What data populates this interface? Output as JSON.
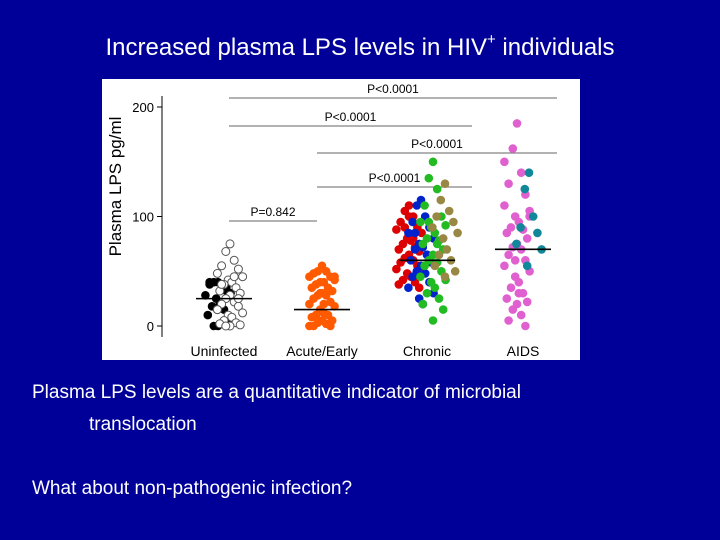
{
  "slide": {
    "title_main": "Increased plasma LPS levels in HIV",
    "title_sup": "+",
    "title_end": " individuals",
    "bullet_1": "Plasma LPS levels are a quantitative indicator of microbial",
    "bullet_1_cont": "translocation",
    "bullet_2": "What about non-pathogenic infection?",
    "background_color": "#000099"
  },
  "chart_data": {
    "type": "scatter",
    "ylabel": "Plasma LPS  pg/ml",
    "yticks": [
      0,
      100,
      200
    ],
    "ylim": [
      -10,
      210
    ],
    "categories": [
      "Uninfected",
      "Acute/Early",
      "Chronic",
      "AIDS"
    ],
    "medians": [
      25,
      15,
      60,
      70
    ],
    "comparisons": [
      {
        "label": "P<0.0001",
        "from": "Uninfected",
        "to": "AIDS"
      },
      {
        "label": "P<0.0001",
        "from": "Uninfected",
        "to": "Chronic"
      },
      {
        "label": "P<0.0001",
        "from": "Acute/Early",
        "to": "AIDS"
      },
      {
        "label": "P<0.0001",
        "from": "Acute/Early",
        "to": "Chronic"
      },
      {
        "label": "P=0.842",
        "from": "Uninfected",
        "to": "Acute/Early"
      }
    ],
    "series": [
      {
        "group": "Uninfected",
        "color": "#000000",
        "filled": true,
        "values": [
          40,
          40,
          35,
          38,
          32,
          28,
          30,
          25,
          20,
          18,
          15,
          10,
          5,
          0,
          0,
          2,
          40,
          35
        ]
      },
      {
        "group": "Uninfected",
        "color": "#555555",
        "filled": false,
        "values": [
          75,
          68,
          60,
          55,
          52,
          48,
          45,
          42,
          40,
          38,
          35,
          32,
          30,
          28,
          25,
          22,
          20,
          18,
          15,
          12,
          10,
          8,
          5,
          3,
          2,
          1,
          0,
          0,
          45,
          38,
          25,
          15
        ]
      },
      {
        "group": "Acute/Early",
        "color": "#ff5a00",
        "filled": true,
        "values": [
          55,
          50,
          50,
          48,
          45,
          45,
          42,
          40,
          40,
          38,
          35,
          35,
          32,
          30,
          28,
          28,
          25,
          22,
          20,
          18,
          15,
          12,
          10,
          10,
          8,
          5,
          5,
          3,
          2,
          0,
          0,
          0,
          45,
          30,
          20,
          10
        ]
      },
      {
        "group": "Chronic",
        "color": "#dd0000",
        "filled": true,
        "values": [
          110,
          105,
          100,
          95,
          90,
          88,
          85,
          80,
          78,
          75,
          72,
          70,
          68,
          65,
          62,
          60,
          58,
          55,
          52,
          50,
          48,
          45,
          42,
          40,
          38,
          35,
          100,
          90,
          80
        ]
      },
      {
        "group": "Chronic",
        "color": "#0022cc",
        "filled": true,
        "values": [
          115,
          110,
          100,
          95,
          90,
          85,
          80,
          75,
          72,
          70,
          65,
          60,
          58,
          55,
          50,
          48,
          45,
          40,
          35,
          30,
          25,
          20,
          85,
          65
        ]
      },
      {
        "group": "Chronic",
        "color": "#22bb22",
        "filled": true,
        "values": [
          150,
          135,
          125,
          110,
          100,
          95,
          92,
          90,
          85,
          80,
          78,
          75,
          70,
          65,
          60,
          58,
          55,
          50,
          45,
          42,
          40,
          35,
          30,
          25,
          20,
          15,
          5,
          95,
          75,
          55
        ]
      },
      {
        "group": "Chronic",
        "color": "#998844",
        "filled": true,
        "values": [
          130,
          115,
          105,
          100,
          95,
          90,
          85,
          80,
          70,
          65,
          60,
          55,
          50,
          45
        ]
      },
      {
        "group": "AIDS",
        "color": "#e060d0",
        "filled": true,
        "values": [
          185,
          162,
          140,
          130,
          120,
          110,
          105,
          100,
          95,
          90,
          88,
          85,
          80,
          75,
          72,
          70,
          65,
          60,
          55,
          50,
          45,
          40,
          35,
          30,
          25,
          22,
          20,
          15,
          10,
          5,
          0,
          150,
          100,
          60,
          30
        ]
      },
      {
        "group": "AIDS",
        "color": "#118899",
        "filled": true,
        "values": [
          140,
          125,
          100,
          90,
          85,
          75,
          70,
          55
        ]
      }
    ]
  }
}
